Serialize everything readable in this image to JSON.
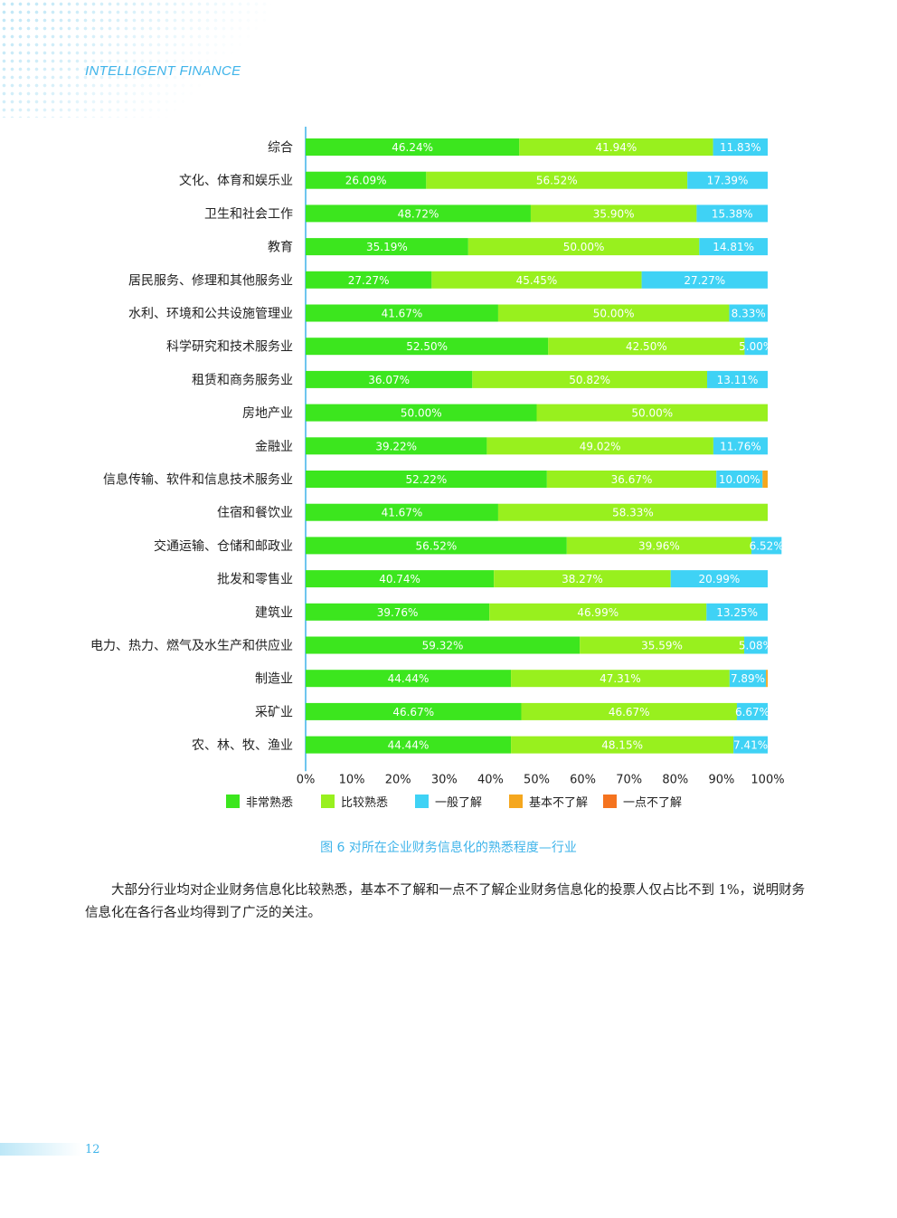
{
  "header": {
    "title": "INTELLIGENT FINANCE"
  },
  "chart_data": {
    "type": "bar",
    "orientation": "horizontal",
    "stacked": true,
    "xlim": [
      0,
      100
    ],
    "x_ticks": [
      "0%",
      "10%",
      "20%",
      "30%",
      "40%",
      "50%",
      "60%",
      "70%",
      "80%",
      "90%",
      "100%"
    ],
    "categories": [
      "综合",
      "文化、体育和娱乐业",
      "卫生和社会工作",
      "教育",
      "居民服务、修理和其他服务业",
      "水利、环境和公共设施管理业",
      "科学研究和技术服务业",
      "租赁和商务服务业",
      "房地产业",
      "金融业",
      "信息传输、软件和信息技术服务业",
      "住宿和餐饮业",
      "交通运输、仓储和邮政业",
      "批发和零售业",
      "建筑业",
      "电力、热力、燃气及水生产和供应业",
      "制造业",
      "采矿业",
      "农、林、牧、渔业"
    ],
    "series": [
      {
        "name": "非常熟悉",
        "color": "#3ce61e",
        "values": [
          46.24,
          26.09,
          48.72,
          35.19,
          27.27,
          41.67,
          52.5,
          36.07,
          50.0,
          39.22,
          52.22,
          41.67,
          56.52,
          40.74,
          39.76,
          59.32,
          44.44,
          46.67,
          44.44
        ]
      },
      {
        "name": "比较熟悉",
        "color": "#98f01e",
        "values": [
          41.94,
          56.52,
          35.9,
          50.0,
          45.45,
          50.0,
          42.5,
          50.82,
          50.0,
          49.02,
          36.67,
          58.33,
          39.96,
          38.27,
          46.99,
          35.59,
          47.31,
          46.67,
          48.15
        ]
      },
      {
        "name": "一般了解",
        "color": "#3fd2f5",
        "values": [
          11.83,
          17.39,
          15.38,
          14.81,
          27.27,
          8.33,
          5.0,
          13.11,
          0,
          11.76,
          10.0,
          0,
          6.52,
          20.99,
          13.25,
          5.08,
          7.89,
          6.67,
          7.41
        ]
      },
      {
        "name": "基本不了解",
        "color": "#f5a71e",
        "values": [
          0,
          0,
          0,
          0,
          0,
          0,
          0,
          0,
          0,
          0,
          1.11,
          0,
          0,
          0,
          0,
          0,
          0.36,
          0,
          0
        ]
      },
      {
        "name": "一点不了解",
        "color": "#f5731e",
        "values": [
          0,
          0,
          0,
          0,
          0,
          0,
          0,
          0,
          0,
          0,
          0,
          0,
          0,
          0,
          0,
          0,
          0,
          0,
          0
        ]
      }
    ],
    "labels": [
      [
        "46.24%",
        "41.94%",
        "11.83%",
        "",
        ""
      ],
      [
        "26.09%",
        "56.52%",
        "17.39%",
        "",
        ""
      ],
      [
        "48.72%",
        "35.90%",
        "15.38%",
        "",
        ""
      ],
      [
        "35.19%",
        "50.00%",
        "14.81%",
        "",
        ""
      ],
      [
        "27.27%",
        "45.45%",
        "27.27%",
        "",
        ""
      ],
      [
        "41.67%",
        "50.00%",
        "8.33%",
        "",
        ""
      ],
      [
        "52.50%",
        "42.50%",
        "5.00%",
        "",
        ""
      ],
      [
        "36.07%",
        "50.82%",
        "13.11%",
        "",
        ""
      ],
      [
        "50.00%",
        "50.00%",
        "",
        "",
        ""
      ],
      [
        "39.22%",
        "49.02%",
        "11.76%",
        "",
        ""
      ],
      [
        "52.22%",
        "36.67%",
        "10.00%",
        "",
        ""
      ],
      [
        "41.67%",
        "58.33%",
        "",
        "",
        ""
      ],
      [
        "56.52%",
        "39.96%",
        "6.52%",
        "",
        ""
      ],
      [
        "40.74%",
        "38.27%",
        "20.99%",
        "",
        ""
      ],
      [
        "39.76%",
        "46.99%",
        "13.25%",
        "",
        ""
      ],
      [
        "59.32%",
        "35.59%",
        "5.08%",
        "",
        ""
      ],
      [
        "44.44%",
        "47.31%",
        "7.89%",
        "",
        ""
      ],
      [
        "46.67%",
        "46.67%",
        "6.67%",
        "",
        ""
      ],
      [
        "44.44%",
        "48.15%",
        "7.41%",
        "",
        ""
      ]
    ],
    "legend_position": "bottom",
    "grid": false
  },
  "caption": "图 6 对所在企业财务信息化的熟悉程度—行业",
  "body_text": "大部分行业均对企业财务信息化比较熟悉，基本不了解和一点不了解企业财务信息化的投票人仅占比不到 1%，说明财务信息化在各行各业均得到了广泛的关注。",
  "page_number": "12"
}
